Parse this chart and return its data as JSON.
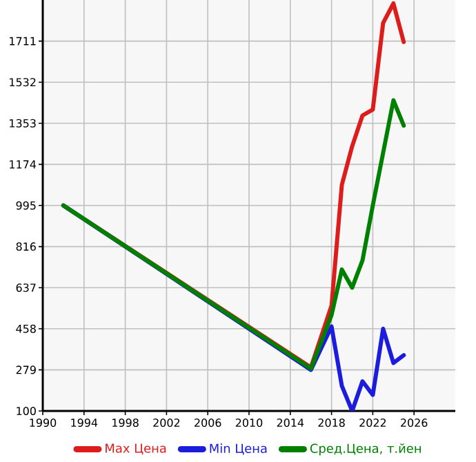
{
  "chart_data": {
    "type": "line",
    "x": [
      1992,
      2016,
      2018,
      2019,
      2020,
      2021,
      2022,
      2023,
      2024,
      2025
    ],
    "series": [
      {
        "name": "Max Цена",
        "color": "#dd1c1c",
        "values": [
          995,
          290,
          559,
          1085,
          1253,
          1387,
          1413,
          1790,
          1875,
          1707
        ]
      },
      {
        "name": "Min Цена",
        "color": "#1c1cdd",
        "values": [
          995,
          279,
          468,
          209,
          100,
          229,
          170,
          458,
          309,
          343
        ]
      },
      {
        "name": "Сред.Цена, т.йен",
        "color": "#008000",
        "x": [
          1992,
          2016,
          2018,
          2019,
          2020,
          2021,
          2022,
          2024,
          2025
        ],
        "values": [
          995,
          285,
          518,
          716,
          637,
          756,
          995,
          1453,
          1343
        ]
      }
    ],
    "xlim": [
      1990,
      2030
    ],
    "xticks": [
      1990,
      1994,
      1998,
      2002,
      2006,
      2010,
      2014,
      2018,
      2022,
      2026
    ],
    "ylim": [
      100,
      1890
    ],
    "yticks": [
      100,
      279,
      458,
      637,
      816,
      995,
      1174,
      1353,
      1532,
      1711
    ],
    "grid": true,
    "legend": "bottom",
    "marker": "none",
    "line_style": "solid"
  }
}
